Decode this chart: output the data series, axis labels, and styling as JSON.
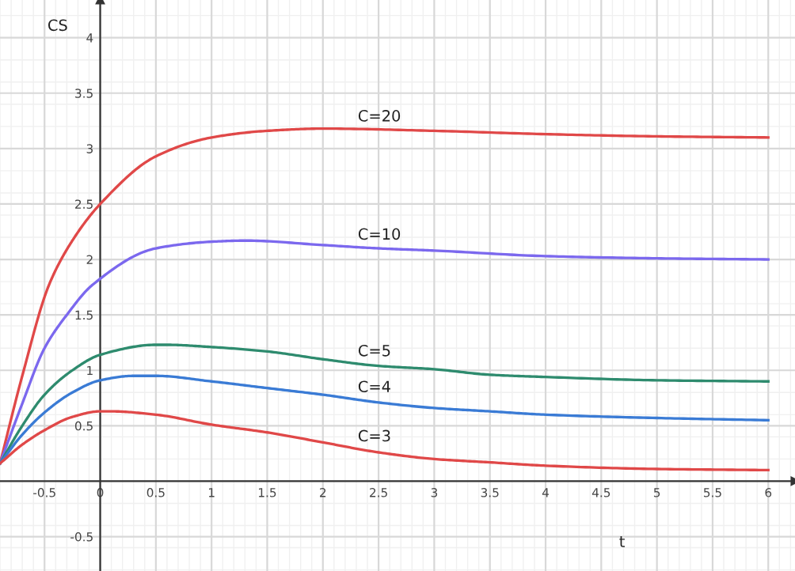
{
  "chart_data": {
    "type": "line",
    "xlabel": "t",
    "ylabel": "CS",
    "xlim": [
      -0.9,
      6.24
    ],
    "ylim": [
      -0.81,
      4.34
    ],
    "xticks": [
      {
        "value": -0.5,
        "label": "-0.5"
      },
      0,
      0.5,
      1,
      1.5,
      2,
      2.5,
      3,
      3.5,
      4,
      4.5,
      5,
      5.5,
      6
    ],
    "yticks": [
      {
        "value": -0.5,
        "label": "-0.5"
      },
      0.5,
      1,
      1.5,
      2,
      2.5,
      3,
      3.5,
      4
    ],
    "grid": true,
    "marker": "none",
    "line_style": "solid",
    "series": [
      {
        "name": "C=20",
        "color": "#e04848",
        "x": [
          -0.9,
          -0.7,
          -0.46,
          -0.25,
          0,
          0.5,
          1,
          1.5,
          2,
          3,
          4,
          5,
          6
        ],
        "values": [
          0.16,
          0.95,
          1.77,
          2.17,
          2.5,
          2.93,
          3.1,
          3.16,
          3.18,
          3.16,
          3.13,
          3.11,
          3.1
        ]
      },
      {
        "name": "C=10",
        "color": "#7b68ee",
        "x": [
          -0.9,
          -0.7,
          -0.5,
          -0.3,
          -0.07,
          0.5,
          1,
          1.3,
          2,
          2.5,
          3,
          4,
          5,
          6
        ],
        "values": [
          0.16,
          0.7,
          1.2,
          1.5,
          1.77,
          2.1,
          2.16,
          2.17,
          2.13,
          2.1,
          2.08,
          2.03,
          2.01,
          2.0
        ]
      },
      {
        "name": "C=5",
        "color": "#2e8b6e",
        "x": [
          -0.9,
          -0.7,
          -0.5,
          -0.25,
          0,
          0.5,
          0.6,
          1,
          1.5,
          2,
          2.5,
          3,
          3.5,
          4,
          5,
          6
        ],
        "values": [
          0.16,
          0.5,
          0.78,
          1.0,
          1.14,
          1.23,
          1.23,
          1.21,
          1.17,
          1.1,
          1.04,
          1.01,
          0.96,
          0.94,
          0.91,
          0.9
        ]
      },
      {
        "name": "C=4",
        "color": "#3a7bd5",
        "x": [
          -0.9,
          -0.7,
          -0.5,
          -0.25,
          0,
          0.3,
          0.5,
          1,
          1.5,
          2,
          2.5,
          3,
          3.5,
          4,
          5,
          6
        ],
        "values": [
          0.16,
          0.42,
          0.62,
          0.8,
          0.91,
          0.95,
          0.95,
          0.9,
          0.84,
          0.78,
          0.71,
          0.66,
          0.63,
          0.6,
          0.57,
          0.55
        ]
      },
      {
        "name": "C=3",
        "color": "#e04848",
        "x": [
          -0.9,
          -0.7,
          -0.5,
          -0.25,
          0,
          0.1,
          0.5,
          1,
          1.5,
          2,
          2.5,
          3,
          3.5,
          4,
          5,
          6
        ],
        "values": [
          0.16,
          0.33,
          0.46,
          0.58,
          0.63,
          0.63,
          0.6,
          0.51,
          0.44,
          0.35,
          0.26,
          0.2,
          0.17,
          0.14,
          0.11,
          0.1
        ]
      }
    ]
  }
}
